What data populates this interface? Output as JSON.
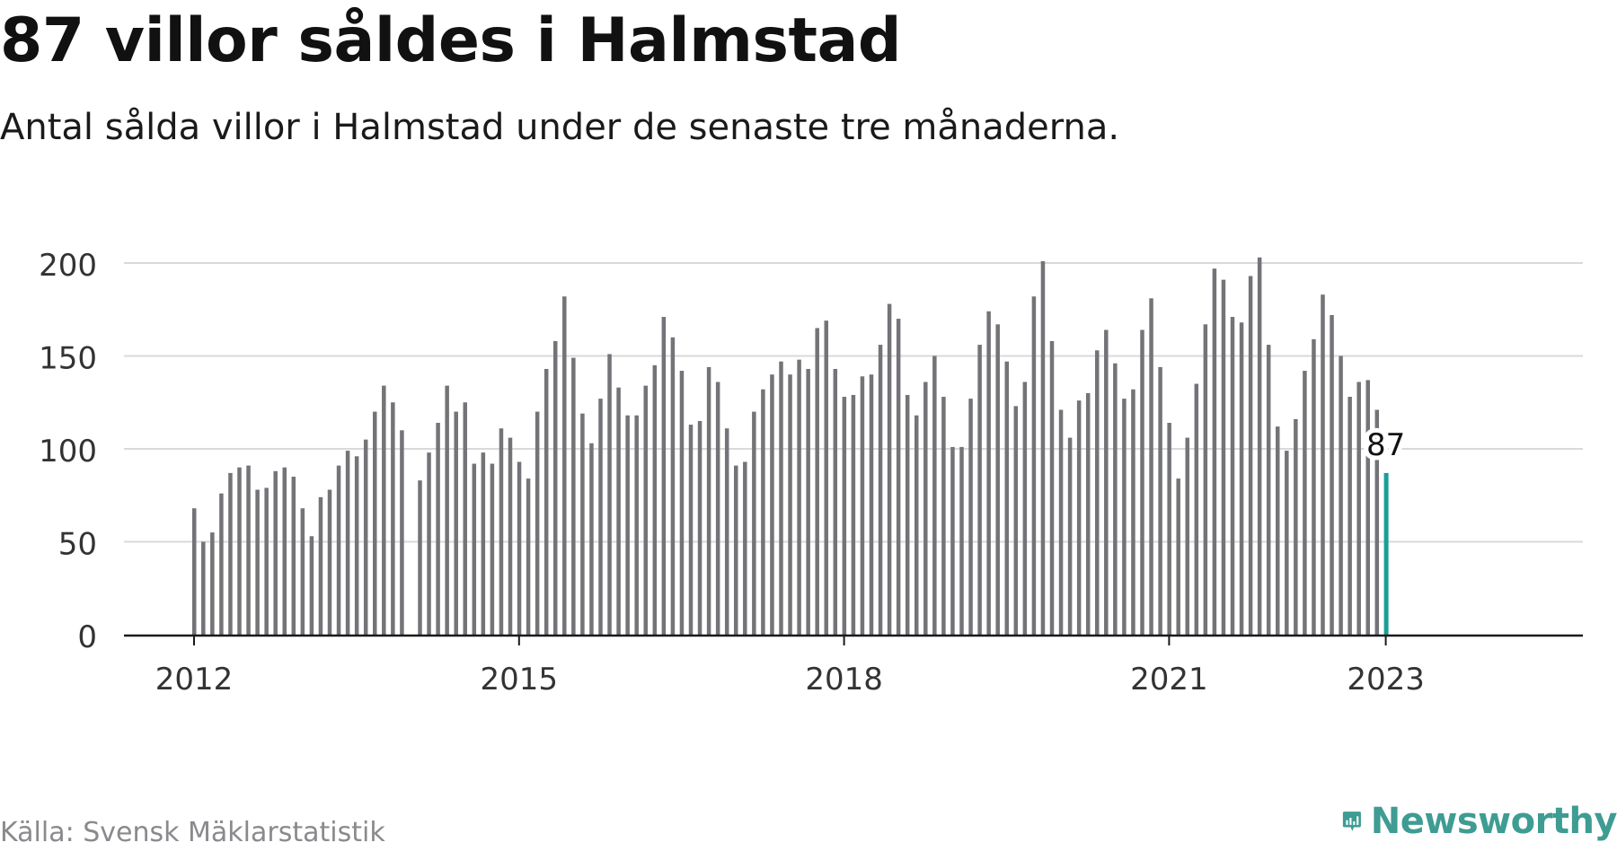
{
  "header": {
    "title": "87 villor såldes i Halmstad",
    "subtitle": "Antal sålda villor i Halmstad under de senaste tre månaderna."
  },
  "footer": {
    "source": "Källa: Svensk Mäklarstatistik",
    "brand": "Newsworthy",
    "brand_icon": "bar-chart-speech-bubble-icon"
  },
  "colors": {
    "bar": "#737378",
    "highlight": "#1a9e96",
    "grid": "#d9d9d9",
    "axis": "#1a1a1a",
    "brand": "#3e9c93"
  },
  "chart_data": {
    "type": "bar",
    "x_start": "2012-01",
    "x_end": "2023-01",
    "x_ticks": [
      "2012",
      "2015",
      "2018",
      "2021",
      "2023"
    ],
    "y_ticks": [
      0,
      50,
      100,
      150,
      200
    ],
    "ylim": [
      0,
      200
    ],
    "grid": true,
    "highlight_label": "87",
    "values": [
      68,
      50,
      55,
      76,
      87,
      90,
      91,
      78,
      79,
      88,
      90,
      85,
      68,
      53,
      74,
      78,
      91,
      99,
      96,
      105,
      120,
      134,
      125,
      110,
      null,
      83,
      98,
      114,
      134,
      120,
      125,
      92,
      98,
      92,
      111,
      106,
      93,
      84,
      120,
      143,
      158,
      182,
      149,
      119,
      103,
      127,
      151,
      133,
      118,
      118,
      134,
      145,
      171,
      160,
      142,
      113,
      115,
      144,
      136,
      111,
      91,
      93,
      120,
      132,
      140,
      147,
      140,
      148,
      143,
      165,
      169,
      143,
      128,
      129,
      139,
      140,
      156,
      178,
      170,
      129,
      118,
      136,
      150,
      128,
      101,
      101,
      127,
      156,
      174,
      167,
      147,
      123,
      136,
      182,
      201,
      158,
      121,
      106,
      126,
      130,
      153,
      164,
      146,
      127,
      132,
      164,
      181,
      144,
      114,
      84,
      106,
      135,
      167,
      197,
      191,
      171,
      168,
      193,
      203,
      156,
      112,
      99,
      116,
      142,
      159,
      183,
      172,
      150,
      128,
      136,
      137,
      121,
      87
    ]
  }
}
